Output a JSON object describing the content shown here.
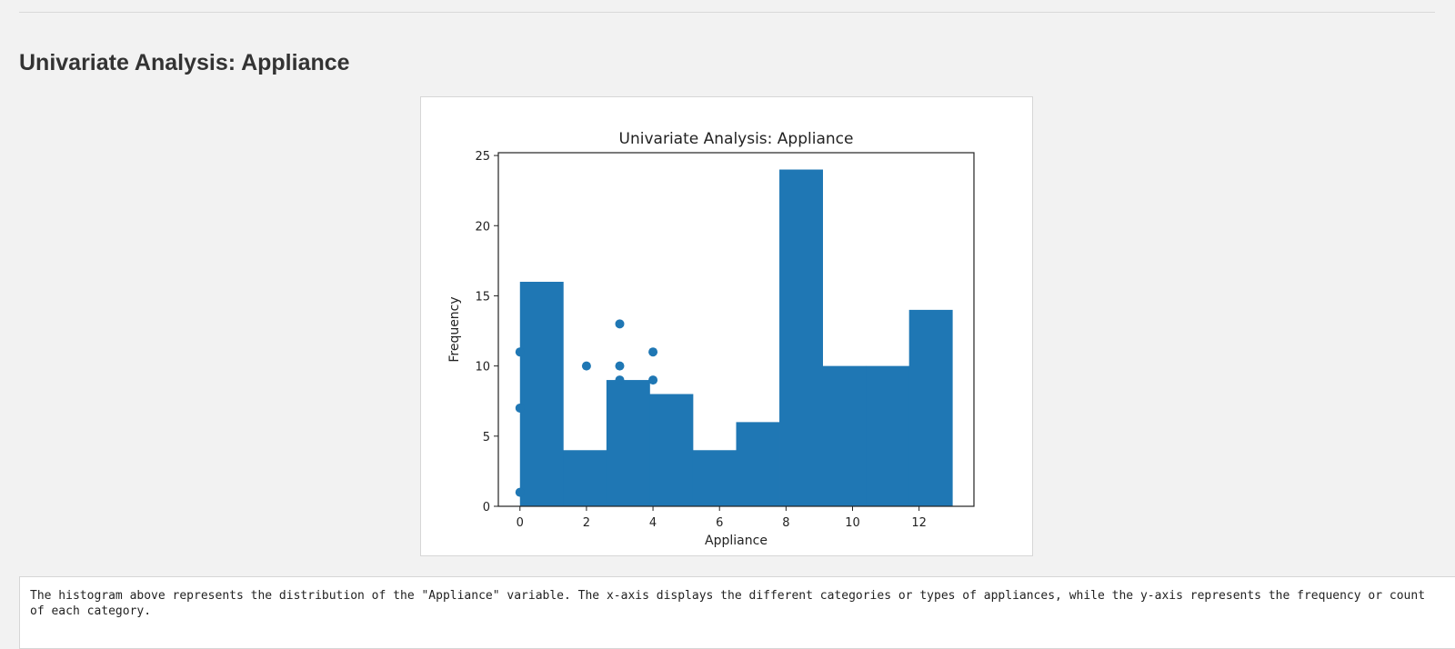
{
  "page": {
    "title": "Univariate Analysis: Appliance",
    "description": "The histogram above represents the distribution of the \"Appliance\" variable. The x-axis displays the different categories or types of appliances, while the y-axis represents the frequency or count of each category."
  },
  "colors": {
    "bar": "#1f77b4",
    "point": "#1f77b4",
    "axis": "#222222"
  },
  "chart_data": {
    "type": "bar",
    "title": "Univariate Analysis: Appliance",
    "xlabel": "Appliance",
    "ylabel": "Frequency",
    "xlim": [
      -0.65,
      13.65
    ],
    "ylim": [
      0,
      25.2
    ],
    "xticks": [
      0,
      2,
      4,
      6,
      8,
      10,
      12
    ],
    "yticks": [
      0,
      5,
      10,
      15,
      20,
      25
    ],
    "grid": false,
    "histogram": {
      "bin_edges": [
        0,
        1.3,
        2.6,
        3.9,
        5.2,
        6.5,
        7.8,
        9.1,
        10.4,
        11.7,
        13
      ],
      "counts": [
        16,
        4,
        9,
        8,
        4,
        6,
        24,
        10,
        10,
        14
      ]
    },
    "points": [
      {
        "x": 0,
        "y": 11
      },
      {
        "x": 0,
        "y": 7
      },
      {
        "x": 0,
        "y": 1
      },
      {
        "x": 2,
        "y": 10
      },
      {
        "x": 3,
        "y": 13
      },
      {
        "x": 3,
        "y": 10
      },
      {
        "x": 3,
        "y": 9
      },
      {
        "x": 4,
        "y": 11
      },
      {
        "x": 4,
        "y": 9
      }
    ]
  }
}
